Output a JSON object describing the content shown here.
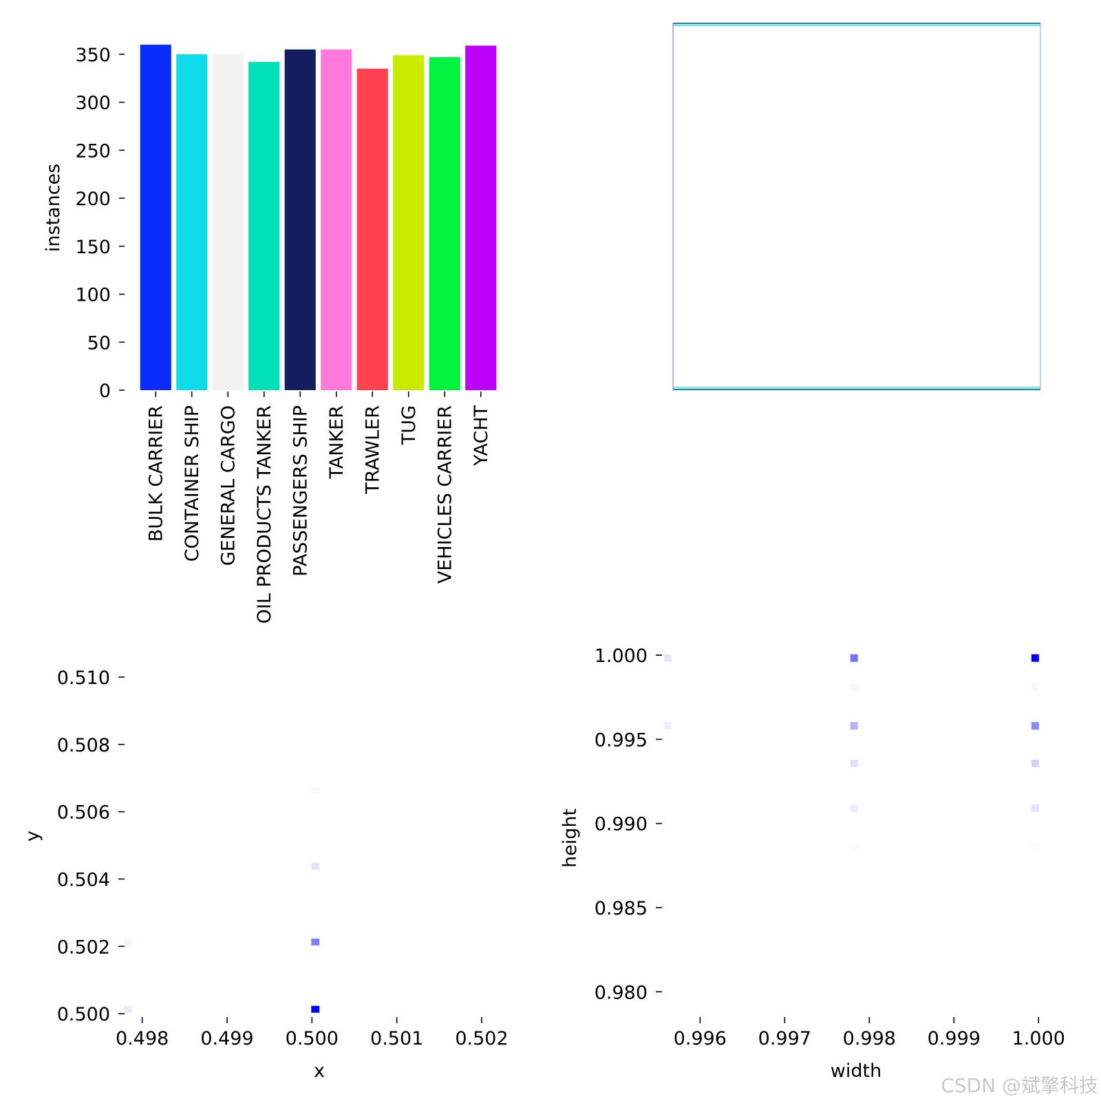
{
  "watermark": "CSDN @斌擎科技",
  "chart_data": [
    {
      "type": "bar",
      "panel": "top-left",
      "categories": [
        "BULK CARRIER",
        "CONTAINER SHIP",
        "GENERAL CARGO",
        "OIL PRODUCTS TANKER",
        "PASSENGERS SHIP",
        "TANKER",
        "TRAWLER",
        "TUG",
        "VEHICLES CARRIER",
        "YACHT"
      ],
      "values": [
        360,
        350,
        350,
        342,
        355,
        355,
        335,
        349,
        347,
        359
      ],
      "colors": [
        "#0a2cff",
        "#0ddce8",
        "#f2f2f2",
        "#00e1b8",
        "#131e5e",
        "#ff78dc",
        "#ff4150",
        "#c8eb00",
        "#00f43e",
        "#bc00fc"
      ],
      "ylabel": "instances",
      "xlabel": "",
      "ylim": [
        0,
        375
      ],
      "yticks": [
        0,
        50,
        100,
        150,
        200,
        250,
        300,
        350
      ],
      "grid": false
    },
    {
      "type": "line",
      "panel": "top-right",
      "description_lines": [
        {
          "color": "#2a7fa8",
          "edge": "top"
        },
        {
          "color": "#0ddce8",
          "edge": "top-inner"
        },
        {
          "color": "#2a7fa8",
          "edge": "bottom"
        },
        {
          "color": "#0ddce8",
          "edge": "bottom-inner"
        },
        {
          "color": "#b07cd8",
          "edge": "left"
        },
        {
          "color": "#9fb0ee",
          "edge": "right"
        }
      ],
      "grid": false
    },
    {
      "type": "heatmap",
      "panel": "bottom-left",
      "xlabel": "x",
      "ylabel": "y",
      "xlim": [
        0.4978,
        0.5023
      ],
      "ylim": [
        0.4999,
        0.511
      ],
      "xticks": [
        "0.498",
        "0.499",
        "0.500",
        "0.501",
        "0.502"
      ],
      "yticks": [
        "0.500",
        "0.502",
        "0.504",
        "0.506",
        "0.508",
        "0.510"
      ],
      "xtick_values": [
        0.498,
        0.499,
        0.5,
        0.501,
        0.502
      ],
      "ytick_values": [
        0.5,
        0.502,
        0.504,
        0.506,
        0.508,
        0.51
      ],
      "cells": [
        {
          "x": 0.50004,
          "y": 0.50013,
          "intensity": 1.0
        },
        {
          "x": 0.50004,
          "y": 0.50213,
          "intensity": 0.5
        },
        {
          "x": 0.50004,
          "y": 0.50438,
          "intensity": 0.12
        },
        {
          "x": 0.50004,
          "y": 0.50663,
          "intensity": 0.03
        },
        {
          "x": 0.49783,
          "y": 0.50013,
          "intensity": 0.08
        },
        {
          "x": 0.49783,
          "y": 0.50213,
          "intensity": 0.04
        }
      ],
      "color": "#0000ff"
    },
    {
      "type": "heatmap",
      "panel": "bottom-right",
      "xlabel": "width",
      "ylabel": "height",
      "xlim": [
        0.99555,
        1.00025
      ],
      "ylim": [
        0.9785,
        1.0007
      ],
      "xticks": [
        "0.996",
        "0.997",
        "0.998",
        "0.999",
        "1.000"
      ],
      "yticks": [
        "0.980",
        "0.985",
        "0.990",
        "0.995",
        "1.000"
      ],
      "xtick_values": [
        0.996,
        0.997,
        0.998,
        0.999,
        1.0
      ],
      "ytick_values": [
        0.98,
        0.985,
        0.99,
        0.995,
        1.0
      ],
      "cells": [
        {
          "x": 0.99996,
          "y": 0.99983,
          "intensity": 1.0
        },
        {
          "x": 0.99782,
          "y": 0.99983,
          "intensity": 0.55
        },
        {
          "x": 0.99562,
          "y": 0.99983,
          "intensity": 0.1
        },
        {
          "x": 0.99996,
          "y": 0.9958,
          "intensity": 0.45
        },
        {
          "x": 0.99782,
          "y": 0.9958,
          "intensity": 0.3
        },
        {
          "x": 0.99562,
          "y": 0.9958,
          "intensity": 0.07
        },
        {
          "x": 0.99996,
          "y": 0.99357,
          "intensity": 0.18
        },
        {
          "x": 0.99782,
          "y": 0.99357,
          "intensity": 0.12
        },
        {
          "x": 0.99996,
          "y": 0.9909,
          "intensity": 0.1
        },
        {
          "x": 0.99782,
          "y": 0.9909,
          "intensity": 0.08
        },
        {
          "x": 0.99996,
          "y": 0.9981,
          "intensity": 0.03
        },
        {
          "x": 0.99782,
          "y": 0.9981,
          "intensity": 0.03
        },
        {
          "x": 0.99996,
          "y": 0.98865,
          "intensity": 0.02
        },
        {
          "x": 0.99782,
          "y": 0.98865,
          "intensity": 0.02
        }
      ],
      "color": "#0000ff"
    }
  ]
}
